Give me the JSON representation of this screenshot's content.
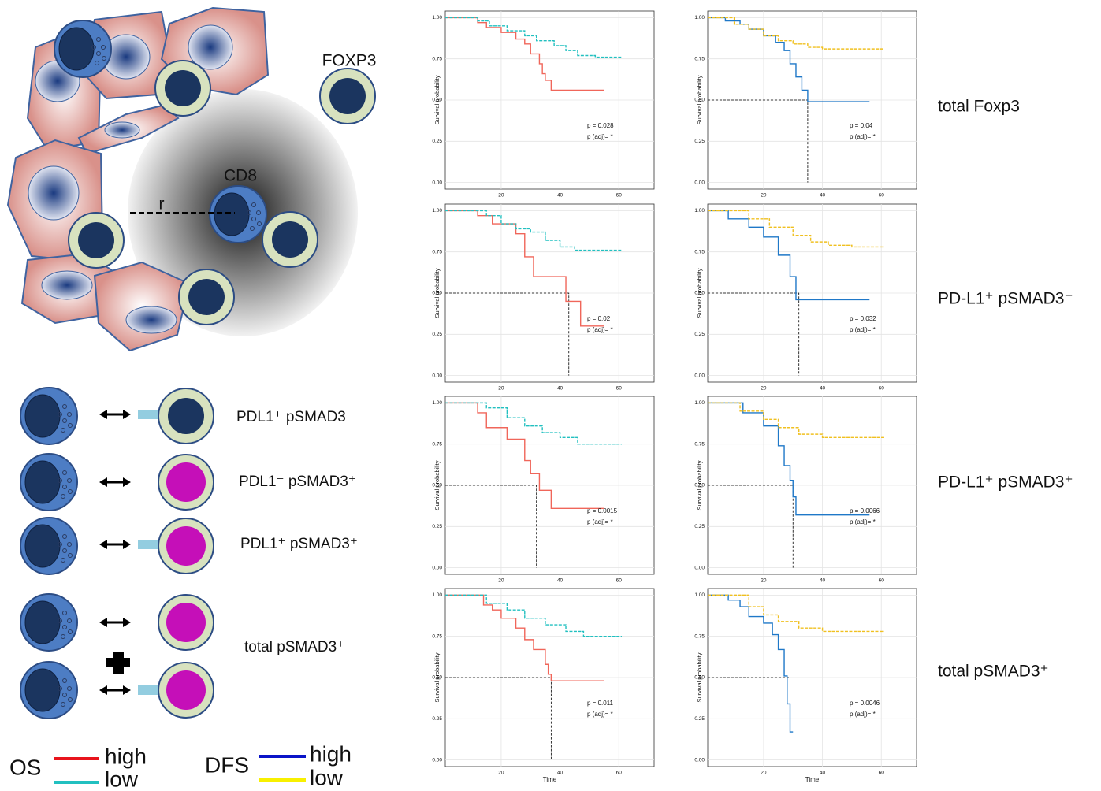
{
  "diagram": {
    "foxp3": "FOXP3",
    "cd8": "CD8",
    "r": "r",
    "combos": [
      "PDL1⁺  pSMAD3⁻",
      "PDL1⁻  pSMAD3⁺",
      "PDL1⁺ pSMAD3⁺",
      "total pSMAD3⁺"
    ],
    "legend": {
      "os": "OS",
      "dfs": "DFS",
      "high": "high",
      "low": "low"
    },
    "row_labels": [
      "total Foxp3",
      "PD-L1⁺ pSMAD3⁻",
      "PD-L1⁺ pSMAD3⁺",
      "total pSMAD3⁺"
    ]
  },
  "chart_data": [
    {
      "type": "step",
      "ylabel": "Survival probability",
      "p_value": "p = 0.028",
      "p_adj": "p (adj)= *",
      "xlim": [
        1,
        72
      ],
      "ylim": [
        -0.04,
        1.04
      ],
      "xticks": [
        20,
        40,
        60
      ],
      "yticks": [
        {
          "value": 0,
          "label": "0.00"
        },
        {
          "value": 0.25,
          "label": "0.25"
        },
        {
          "value": 0.5,
          "label": "0.50"
        },
        {
          "value": 0.75,
          "label": "0.75"
        },
        {
          "value": 1,
          "label": "1.00"
        }
      ],
      "series": [
        {
          "color": "#f0665a",
          "x": [
            1,
            12,
            15,
            20,
            25,
            28,
            30,
            33,
            34,
            35,
            37,
            55
          ],
          "values": [
            1,
            0.97,
            0.94,
            0.91,
            0.87,
            0.84,
            0.78,
            0.72,
            0.66,
            0.62,
            0.56,
            0.56
          ]
        },
        {
          "color": "#22c0c0",
          "dashed": true,
          "x": [
            1,
            12,
            16,
            22,
            28,
            32,
            38,
            42,
            46,
            52,
            61
          ],
          "values": [
            1,
            0.98,
            0.95,
            0.92,
            0.89,
            0.86,
            0.83,
            0.8,
            0.77,
            0.76,
            0.76
          ]
        }
      ]
    },
    {
      "type": "step",
      "ylabel": "Survival probability",
      "p_value": "p = 0.04",
      "p_adj": "p (adj)= *",
      "median_x": 35,
      "xlim": [
        1,
        72
      ],
      "ylim": [
        -0.04,
        1.04
      ],
      "xticks": [
        20,
        40,
        60
      ],
      "yticks": [
        {
          "value": 0,
          "label": "0.00"
        },
        {
          "value": 0.25,
          "label": "0.25"
        },
        {
          "value": 0.5,
          "label": "0.50"
        },
        {
          "value": 0.75,
          "label": "0.75"
        },
        {
          "value": 1,
          "label": "1.00"
        }
      ],
      "series": [
        {
          "color": "#1f78c8",
          "x": [
            1,
            7,
            12,
            15,
            20,
            24,
            27,
            29,
            31,
            33,
            35,
            56
          ],
          "values": [
            1,
            0.98,
            0.96,
            0.93,
            0.89,
            0.85,
            0.8,
            0.72,
            0.64,
            0.56,
            0.49,
            0.49
          ]
        },
        {
          "color": "#f0c020",
          "dashed": true,
          "x": [
            1,
            10,
            15,
            20,
            25,
            30,
            35,
            40,
            45,
            61
          ],
          "values": [
            1,
            0.96,
            0.93,
            0.89,
            0.86,
            0.84,
            0.82,
            0.81,
            0.81,
            0.81
          ]
        }
      ]
    },
    {
      "type": "step",
      "ylabel": "Survival probability",
      "p_value": "p = 0.02",
      "p_adj": "p (adj)= *",
      "median_x": 43,
      "xlim": [
        1,
        72
      ],
      "ylim": [
        -0.04,
        1.04
      ],
      "xticks": [
        20,
        40,
        60
      ],
      "yticks": [
        {
          "value": 0,
          "label": "0.00"
        },
        {
          "value": 0.25,
          "label": "0.25"
        },
        {
          "value": 0.5,
          "label": "0.50"
        },
        {
          "value": 0.75,
          "label": "0.75"
        },
        {
          "value": 1,
          "label": "1.00"
        }
      ],
      "series": [
        {
          "color": "#f0665a",
          "x": [
            1,
            12,
            17,
            25,
            28,
            31,
            40,
            42,
            47,
            55
          ],
          "values": [
            1,
            0.97,
            0.92,
            0.86,
            0.72,
            0.6,
            0.6,
            0.45,
            0.3,
            0.3
          ]
        },
        {
          "color": "#22c0c0",
          "dashed": true,
          "x": [
            1,
            15,
            20,
            25,
            30,
            35,
            40,
            45,
            61
          ],
          "values": [
            1,
            0.97,
            0.92,
            0.89,
            0.87,
            0.82,
            0.78,
            0.76,
            0.76
          ]
        }
      ]
    },
    {
      "type": "step",
      "ylabel": "Survival probability",
      "p_value": "p = 0.032",
      "p_adj": "p (adj)= *",
      "median_x": 32,
      "xlim": [
        1,
        72
      ],
      "ylim": [
        -0.04,
        1.04
      ],
      "xticks": [
        20,
        40,
        60
      ],
      "yticks": [
        {
          "value": 0,
          "label": "0.00"
        },
        {
          "value": 0.25,
          "label": "0.25"
        },
        {
          "value": 0.5,
          "label": "0.50"
        },
        {
          "value": 0.75,
          "label": "0.75"
        },
        {
          "value": 1,
          "label": "1.00"
        }
      ],
      "series": [
        {
          "color": "#1f78c8",
          "x": [
            1,
            8,
            15,
            20,
            25,
            29,
            31,
            56
          ],
          "values": [
            1,
            0.95,
            0.9,
            0.84,
            0.73,
            0.6,
            0.46,
            0.46
          ]
        },
        {
          "color": "#f0c020",
          "dashed": true,
          "x": [
            1,
            15,
            22,
            30,
            36,
            42,
            50,
            61
          ],
          "values": [
            1,
            0.95,
            0.9,
            0.85,
            0.81,
            0.79,
            0.78,
            0.78
          ]
        }
      ]
    },
    {
      "type": "step",
      "ylabel": "Survival probability",
      "p_value": "p = 0.0015",
      "p_adj": "p (adj)= *",
      "median_x": 32,
      "xlim": [
        1,
        72
      ],
      "ylim": [
        -0.04,
        1.04
      ],
      "xticks": [
        20,
        40,
        60
      ],
      "yticks": [
        {
          "value": 0,
          "label": "0.00"
        },
        {
          "value": 0.25,
          "label": "0.25"
        },
        {
          "value": 0.5,
          "label": "0.50"
        },
        {
          "value": 0.75,
          "label": "0.75"
        },
        {
          "value": 1,
          "label": "1.00"
        }
      ],
      "series": [
        {
          "color": "#f0665a",
          "x": [
            1,
            12,
            15,
            22,
            28,
            30,
            33,
            37,
            55
          ],
          "values": [
            1,
            0.94,
            0.85,
            0.78,
            0.65,
            0.57,
            0.47,
            0.36,
            0.36
          ]
        },
        {
          "color": "#22c0c0",
          "dashed": true,
          "x": [
            1,
            15,
            22,
            28,
            34,
            40,
            46,
            61
          ],
          "values": [
            1,
            0.97,
            0.91,
            0.86,
            0.82,
            0.79,
            0.75,
            0.75
          ]
        }
      ]
    },
    {
      "type": "step",
      "ylabel": "Survival probability",
      "p_value": "p = 0.0066",
      "p_adj": "p (adj)= *",
      "median_x": 30,
      "xlim": [
        1,
        72
      ],
      "ylim": [
        -0.04,
        1.04
      ],
      "xticks": [
        20,
        40,
        60
      ],
      "yticks": [
        {
          "value": 0,
          "label": "0.00"
        },
        {
          "value": 0.25,
          "label": "0.25"
        },
        {
          "value": 0.5,
          "label": "0.50"
        },
        {
          "value": 0.75,
          "label": "0.75"
        },
        {
          "value": 1,
          "label": "1.00"
        }
      ],
      "series": [
        {
          "color": "#1f78c8",
          "x": [
            1,
            13,
            20,
            25,
            27,
            29,
            30,
            31,
            56
          ],
          "values": [
            1,
            0.94,
            0.86,
            0.74,
            0.62,
            0.53,
            0.43,
            0.32,
            0.32
          ]
        },
        {
          "color": "#f0c020",
          "dashed": true,
          "x": [
            1,
            12,
            20,
            25,
            32,
            40,
            50,
            61
          ],
          "values": [
            1,
            0.95,
            0.9,
            0.85,
            0.81,
            0.79,
            0.79,
            0.79
          ]
        }
      ]
    },
    {
      "type": "step",
      "ylabel": "Survival probability",
      "xlabel": "Time",
      "p_value": "p = 0.011",
      "p_adj": "p (adj)= *",
      "median_x": 37,
      "xlim": [
        1,
        72
      ],
      "ylim": [
        -0.04,
        1.04
      ],
      "xticks": [
        20,
        40,
        60
      ],
      "yticks": [
        {
          "value": 0,
          "label": "0.00"
        },
        {
          "value": 0.25,
          "label": "0.25"
        },
        {
          "value": 0.5,
          "label": "0.50"
        },
        {
          "value": 0.75,
          "label": "0.75"
        },
        {
          "value": 1,
          "label": "1.00"
        }
      ],
      "series": [
        {
          "color": "#f0665a",
          "x": [
            1,
            14,
            17,
            20,
            25,
            28,
            31,
            35,
            36,
            37,
            55
          ],
          "values": [
            1,
            0.94,
            0.91,
            0.86,
            0.8,
            0.73,
            0.67,
            0.58,
            0.52,
            0.48,
            0.48
          ]
        },
        {
          "color": "#22c0c0",
          "dashed": true,
          "x": [
            1,
            15,
            22,
            28,
            35,
            42,
            48,
            61
          ],
          "values": [
            1,
            0.95,
            0.91,
            0.86,
            0.82,
            0.78,
            0.75,
            0.75
          ]
        }
      ]
    },
    {
      "type": "step",
      "ylabel": "Survival probability",
      "xlabel": "Time",
      "p_value": "p = 0.0046",
      "p_adj": "p (adj)= *",
      "median_x": 29,
      "xlim": [
        1,
        72
      ],
      "ylim": [
        -0.04,
        1.04
      ],
      "xticks": [
        20,
        40,
        60
      ],
      "yticks": [
        {
          "value": 0,
          "label": "0.00"
        },
        {
          "value": 0.25,
          "label": "0.25"
        },
        {
          "value": 0.5,
          "label": "0.50"
        },
        {
          "value": 0.75,
          "label": "0.75"
        },
        {
          "value": 1,
          "label": "1.00"
        }
      ],
      "series": [
        {
          "color": "#1f78c8",
          "x": [
            1,
            8,
            12,
            15,
            20,
            23,
            25,
            27,
            28,
            29,
            30
          ],
          "values": [
            1,
            0.97,
            0.93,
            0.87,
            0.83,
            0.76,
            0.67,
            0.51,
            0.34,
            0.17,
            0.17
          ]
        },
        {
          "color": "#f0c020",
          "dashed": true,
          "x": [
            1,
            15,
            20,
            25,
            32,
            40,
            50,
            61
          ],
          "values": [
            1,
            0.93,
            0.88,
            0.84,
            0.8,
            0.78,
            0.78,
            0.78
          ]
        }
      ]
    }
  ]
}
